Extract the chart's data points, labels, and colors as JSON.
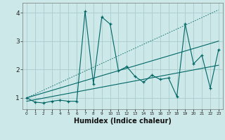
{
  "title": "",
  "xlabel": "Humidex (Indice chaleur)",
  "bg_color": "#cce8e8",
  "grid_color": "#aacccc",
  "line_color": "#006666",
  "xlim": [
    -0.5,
    23.5
  ],
  "ylim": [
    0.6,
    4.35
  ],
  "yticks": [
    1,
    2,
    3,
    4
  ],
  "xtick_labels": [
    "0",
    "1",
    "2",
    "3",
    "4",
    "5",
    "6",
    "7",
    "8",
    "9",
    "10",
    "11",
    "12",
    "13",
    "14",
    "15",
    "16",
    "17",
    "18",
    "19",
    "20",
    "21",
    "22",
    "23"
  ],
  "main_x": [
    0,
    1,
    2,
    3,
    4,
    5,
    6,
    7,
    8,
    9,
    10,
    11,
    12,
    13,
    14,
    15,
    16,
    17,
    18,
    19,
    20,
    21,
    22,
    23
  ],
  "main_y": [
    1.0,
    0.85,
    0.82,
    0.88,
    0.92,
    0.88,
    0.88,
    4.05,
    1.5,
    3.85,
    3.6,
    1.95,
    2.1,
    1.75,
    1.55,
    1.8,
    1.65,
    1.7,
    1.05,
    3.6,
    2.2,
    2.5,
    1.35,
    2.7
  ],
  "line1_x": [
    0,
    23
  ],
  "line1_y": [
    1.0,
    4.1
  ],
  "line2_x": [
    0,
    23
  ],
  "line2_y": [
    1.0,
    3.0
  ],
  "line3_x": [
    0,
    23
  ],
  "line3_y": [
    0.88,
    2.15
  ]
}
